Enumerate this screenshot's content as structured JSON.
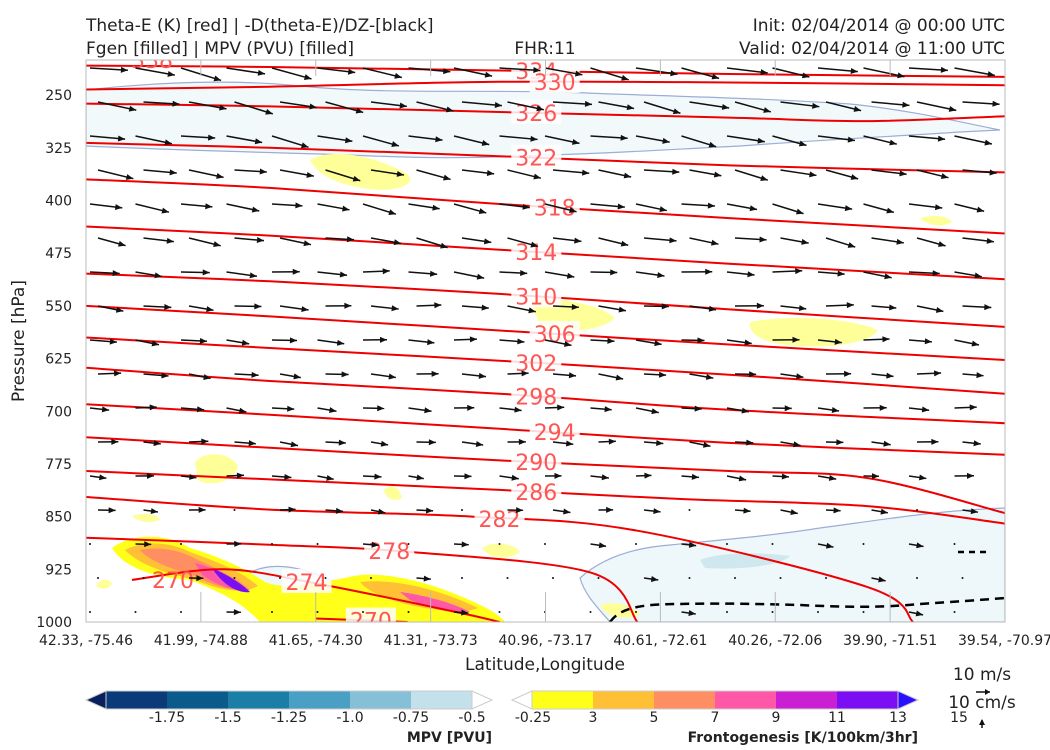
{
  "header": {
    "left_line1": "Theta-E (K) [red] | -D(theta-E)/DZ-[black]",
    "left_line2": "Fgen [filled] | MPV (PVU) [filled]",
    "center": "FHR:11",
    "right_line1": "Init: 02/04/2014 @ 00:00 UTC",
    "right_line2": "Valid: 02/04/2014 @ 11:00 UTC"
  },
  "chart_data": {
    "type": "cross-section",
    "xlabel": "Latitude,Longitude",
    "ylabel": "Pressure [hPa]",
    "x_ticks": [
      "42.33, -75.46",
      "41.99, -74.88",
      "41.65, -74.30",
      "41.31, -73.73",
      "40.96, -73.17",
      "40.61, -72.61",
      "40.26, -72.06",
      "39.90, -71.51",
      "39.54, -70.97"
    ],
    "y_ticks": [
      250,
      325,
      400,
      475,
      550,
      625,
      700,
      775,
      850,
      925,
      1000
    ],
    "ylim": [
      1000,
      200
    ],
    "theta_e_contours": [
      {
        "value": 334,
        "label": "334",
        "points": [
          [
            0.0,
            208
          ],
          [
            0.2,
            210
          ],
          [
            0.45,
            215
          ],
          [
            0.7,
            220
          ],
          [
            1.0,
            224
          ]
        ]
      },
      {
        "value": 330,
        "label": "330",
        "points": [
          [
            0.0,
            242
          ],
          [
            0.2,
            238
          ],
          [
            0.45,
            231
          ],
          [
            0.7,
            232
          ],
          [
            1.0,
            236
          ]
        ]
      },
      {
        "value": 326,
        "label": "326",
        "points": [
          [
            0.0,
            262
          ],
          [
            0.2,
            266
          ],
          [
            0.45,
            274
          ],
          [
            0.7,
            282
          ],
          [
            0.85,
            287
          ],
          [
            1.0,
            280
          ]
        ]
      },
      {
        "value": 322,
        "label": "322",
        "points": [
          [
            0.0,
            318
          ],
          [
            0.2,
            325
          ],
          [
            0.45,
            337
          ],
          [
            0.7,
            350
          ],
          [
            1.0,
            360
          ]
        ]
      },
      {
        "value": 318,
        "label": "318",
        "points": [
          [
            0.0,
            370
          ],
          [
            0.2,
            382
          ],
          [
            0.45,
            405
          ],
          [
            0.7,
            425
          ],
          [
            1.0,
            447
          ]
        ]
      },
      {
        "value": 314,
        "label": "314",
        "points": [
          [
            0.0,
            437
          ],
          [
            0.2,
            450
          ],
          [
            0.45,
            470
          ],
          [
            0.7,
            490
          ],
          [
            1.0,
            512
          ]
        ]
      },
      {
        "value": 310,
        "label": "310",
        "points": [
          [
            0.0,
            504
          ],
          [
            0.2,
            515
          ],
          [
            0.45,
            533
          ],
          [
            0.7,
            555
          ],
          [
            1.0,
            580
          ]
        ]
      },
      {
        "value": 306,
        "label": "306",
        "points": [
          [
            0.0,
            550
          ],
          [
            0.2,
            565
          ],
          [
            0.45,
            585
          ],
          [
            0.7,
            605
          ],
          [
            1.0,
            627
          ]
        ]
      },
      {
        "value": 302,
        "label": "302",
        "points": [
          [
            0.0,
            595
          ],
          [
            0.2,
            610
          ],
          [
            0.45,
            628
          ],
          [
            0.7,
            648
          ],
          [
            1.0,
            675
          ]
        ]
      },
      {
        "value": 298,
        "label": "298",
        "points": [
          [
            0.0,
            638
          ],
          [
            0.2,
            657
          ],
          [
            0.45,
            675
          ],
          [
            0.7,
            698
          ],
          [
            1.0,
            717
          ]
        ]
      },
      {
        "value": 294,
        "label": "294",
        "points": [
          [
            0.0,
            690
          ],
          [
            0.2,
            705
          ],
          [
            0.45,
            725
          ],
          [
            0.7,
            745
          ],
          [
            1.0,
            762
          ]
        ]
      },
      {
        "value": 290,
        "label": "290",
        "points": [
          [
            0.0,
            737
          ],
          [
            0.2,
            752
          ],
          [
            0.45,
            770
          ],
          [
            0.7,
            785
          ],
          [
            0.85,
            795
          ],
          [
            1.0,
            845
          ]
        ]
      },
      {
        "value": 286,
        "label": "286",
        "points": [
          [
            0.0,
            785
          ],
          [
            0.2,
            797
          ],
          [
            0.45,
            812
          ],
          [
            0.65,
            825
          ],
          [
            0.85,
            835
          ],
          [
            1.0,
            860
          ]
        ]
      },
      {
        "value": 282,
        "label": "282",
        "points": [
          [
            0.0,
            822
          ],
          [
            0.2,
            840
          ],
          [
            0.42,
            850
          ],
          [
            0.6,
            870
          ],
          [
            0.85,
            950
          ],
          [
            0.9,
            1000
          ]
        ]
      },
      {
        "value": 278,
        "label": "278",
        "points": [
          [
            0.0,
            880
          ],
          [
            0.2,
            890
          ],
          [
            0.35,
            900
          ],
          [
            0.55,
            930
          ],
          [
            0.6,
            1000
          ]
        ]
      },
      {
        "value": 274,
        "label": "274",
        "points": [
          [
            0.05,
            940
          ],
          [
            0.15,
            925
          ],
          [
            0.25,
            945
          ],
          [
            0.4,
            985
          ],
          [
            0.45,
            1000
          ]
        ]
      },
      {
        "value": 270,
        "label": "270",
        "points": [
          [
            0.25,
            995
          ],
          [
            0.35,
            1000
          ]
        ]
      }
    ],
    "mpv_colorbar": {
      "label": "MPV [PVU]",
      "ticks": [
        "-1.75",
        "-1.5",
        "-1.25",
        "-1.0",
        "-0.75",
        "-0.5",
        "-0.25"
      ],
      "colors": [
        "#08205e",
        "#0a3a78",
        "#0b5a8c",
        "#1b7ea6",
        "#4aa0c4",
        "#86c0d6",
        "#c3e1ea",
        "#ffffff"
      ]
    },
    "fgen_colorbar": {
      "label": "Frontogenesis [K/100km/3hr]",
      "ticks": [
        "3",
        "5",
        "7",
        "9",
        "11",
        "13",
        "15"
      ],
      "colors": [
        "#ffffff",
        "#ffff1a",
        "#ffc035",
        "#ff8e62",
        "#ff58a6",
        "#c820d2",
        "#7b0ef2",
        "#2b10ff"
      ]
    },
    "wind_key": {
      "horizontal": "10 m/s",
      "vertical": "10 cm/s"
    }
  }
}
